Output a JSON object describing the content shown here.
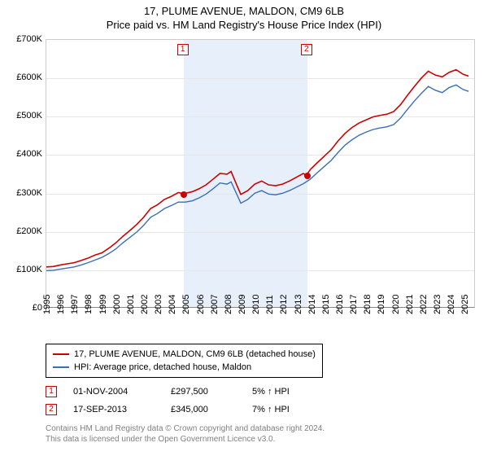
{
  "title": {
    "line1": "17, PLUME AVENUE, MALDON, CM9 6LB",
    "line2": "Price paid vs. HM Land Registry's House Price Index (HPI)"
  },
  "chart": {
    "type": "line",
    "background_color": "#ffffff",
    "grid_color": "#e6e6e6",
    "axis_color": "#888888",
    "shade_color": "#e7effa",
    "x": {
      "min": 1995,
      "max": 2025.8,
      "ticks": [
        1995,
        1996,
        1997,
        1998,
        1999,
        2000,
        2001,
        2002,
        2003,
        2004,
        2005,
        2006,
        2007,
        2008,
        2009,
        2010,
        2011,
        2012,
        2013,
        2014,
        2015,
        2016,
        2017,
        2018,
        2019,
        2020,
        2021,
        2022,
        2023,
        2024,
        2025
      ]
    },
    "y": {
      "min": 0,
      "max": 700000,
      "ticks": [
        0,
        100000,
        200000,
        300000,
        400000,
        500000,
        600000,
        700000
      ],
      "labels": [
        "£0",
        "£100K",
        "£200K",
        "£300K",
        "£400K",
        "£500K",
        "£600K",
        "£700K"
      ]
    },
    "shaded": {
      "from": 2004.84,
      "to": 2013.71
    },
    "series_property": {
      "label": "17, PLUME AVENUE, MALDON, CM9 6LB (detached house)",
      "color": "#cc0000",
      "width": 1.6,
      "points": [
        [
          1995.0,
          105000
        ],
        [
          1995.5,
          106000
        ],
        [
          1996.0,
          110000
        ],
        [
          1996.5,
          113000
        ],
        [
          1997.0,
          116000
        ],
        [
          1997.5,
          122000
        ],
        [
          1998.0,
          128000
        ],
        [
          1998.5,
          136000
        ],
        [
          1999.0,
          142000
        ],
        [
          1999.5,
          154000
        ],
        [
          2000.0,
          168000
        ],
        [
          2000.5,
          185000
        ],
        [
          2001.0,
          200000
        ],
        [
          2001.5,
          216000
        ],
        [
          2002.0,
          235000
        ],
        [
          2002.5,
          258000
        ],
        [
          2003.0,
          268000
        ],
        [
          2003.5,
          282000
        ],
        [
          2004.0,
          290000
        ],
        [
          2004.5,
          300000
        ],
        [
          2004.84,
          297500
        ],
        [
          2005.0,
          298000
        ],
        [
          2005.5,
          302000
        ],
        [
          2006.0,
          310000
        ],
        [
          2006.5,
          320000
        ],
        [
          2007.0,
          335000
        ],
        [
          2007.5,
          350000
        ],
        [
          2008.0,
          348000
        ],
        [
          2008.3,
          355000
        ],
        [
          2008.7,
          320000
        ],
        [
          2009.0,
          295000
        ],
        [
          2009.5,
          305000
        ],
        [
          2010.0,
          322000
        ],
        [
          2010.5,
          330000
        ],
        [
          2011.0,
          320000
        ],
        [
          2011.5,
          318000
        ],
        [
          2012.0,
          322000
        ],
        [
          2012.5,
          330000
        ],
        [
          2013.0,
          340000
        ],
        [
          2013.5,
          350000
        ],
        [
          2013.71,
          345000
        ],
        [
          2014.0,
          360000
        ],
        [
          2014.5,
          378000
        ],
        [
          2015.0,
          395000
        ],
        [
          2015.5,
          412000
        ],
        [
          2016.0,
          435000
        ],
        [
          2016.5,
          455000
        ],
        [
          2017.0,
          470000
        ],
        [
          2017.5,
          482000
        ],
        [
          2018.0,
          490000
        ],
        [
          2018.5,
          498000
        ],
        [
          2019.0,
          502000
        ],
        [
          2019.5,
          505000
        ],
        [
          2020.0,
          512000
        ],
        [
          2020.5,
          530000
        ],
        [
          2021.0,
          555000
        ],
        [
          2021.5,
          578000
        ],
        [
          2022.0,
          600000
        ],
        [
          2022.5,
          618000
        ],
        [
          2023.0,
          608000
        ],
        [
          2023.5,
          603000
        ],
        [
          2024.0,
          615000
        ],
        [
          2024.5,
          622000
        ],
        [
          2025.0,
          610000
        ],
        [
          2025.4,
          605000
        ]
      ]
    },
    "series_hpi": {
      "label": "HPI: Average price, detached house, Maldon",
      "color": "#3a6fb7",
      "width": 1.4,
      "points": [
        [
          1995.0,
          95000
        ],
        [
          1995.5,
          96000
        ],
        [
          1996.0,
          99000
        ],
        [
          1996.5,
          102000
        ],
        [
          1997.0,
          105000
        ],
        [
          1997.5,
          110000
        ],
        [
          1998.0,
          116000
        ],
        [
          1998.5,
          123000
        ],
        [
          1999.0,
          130000
        ],
        [
          1999.5,
          140000
        ],
        [
          2000.0,
          152000
        ],
        [
          2000.5,
          168000
        ],
        [
          2001.0,
          182000
        ],
        [
          2001.5,
          196000
        ],
        [
          2002.0,
          214000
        ],
        [
          2002.5,
          235000
        ],
        [
          2003.0,
          245000
        ],
        [
          2003.5,
          258000
        ],
        [
          2004.0,
          266000
        ],
        [
          2004.5,
          275000
        ],
        [
          2005.0,
          275000
        ],
        [
          2005.5,
          278000
        ],
        [
          2006.0,
          286000
        ],
        [
          2006.5,
          296000
        ],
        [
          2007.0,
          310000
        ],
        [
          2007.5,
          325000
        ],
        [
          2008.0,
          322000
        ],
        [
          2008.3,
          328000
        ],
        [
          2008.7,
          296000
        ],
        [
          2009.0,
          272000
        ],
        [
          2009.5,
          282000
        ],
        [
          2010.0,
          298000
        ],
        [
          2010.5,
          305000
        ],
        [
          2011.0,
          296000
        ],
        [
          2011.5,
          294000
        ],
        [
          2012.0,
          298000
        ],
        [
          2012.5,
          305000
        ],
        [
          2013.0,
          314000
        ],
        [
          2013.5,
          323000
        ],
        [
          2014.0,
          335000
        ],
        [
          2014.5,
          352000
        ],
        [
          2015.0,
          368000
        ],
        [
          2015.5,
          384000
        ],
        [
          2016.0,
          405000
        ],
        [
          2016.5,
          424000
        ],
        [
          2017.0,
          438000
        ],
        [
          2017.5,
          450000
        ],
        [
          2018.0,
          458000
        ],
        [
          2018.5,
          465000
        ],
        [
          2019.0,
          469000
        ],
        [
          2019.5,
          472000
        ],
        [
          2020.0,
          478000
        ],
        [
          2020.5,
          495000
        ],
        [
          2021.0,
          518000
        ],
        [
          2021.5,
          540000
        ],
        [
          2022.0,
          560000
        ],
        [
          2022.5,
          578000
        ],
        [
          2023.0,
          568000
        ],
        [
          2023.5,
          562000
        ],
        [
          2024.0,
          575000
        ],
        [
          2024.5,
          582000
        ],
        [
          2025.0,
          570000
        ],
        [
          2025.4,
          565000
        ]
      ]
    },
    "sale_markers": [
      {
        "n": "1",
        "year": 2004.84,
        "price": 297500
      },
      {
        "n": "2",
        "year": 2013.71,
        "price": 345000
      }
    ]
  },
  "legend": {
    "rows": [
      {
        "color": "#cc0000",
        "label": "17, PLUME AVENUE, MALDON, CM9 6LB (detached house)"
      },
      {
        "color": "#3a6fb7",
        "label": "HPI: Average price, detached house, Maldon"
      }
    ]
  },
  "sales": [
    {
      "n": "1",
      "date": "01-NOV-2004",
      "price": "£297,500",
      "note": "5% ↑ HPI"
    },
    {
      "n": "2",
      "date": "17-SEP-2013",
      "price": "£345,000",
      "note": "7% ↑ HPI"
    }
  ],
  "footer": {
    "line1": "Contains HM Land Registry data © Crown copyright and database right 2024.",
    "line2": "This data is licensed under the Open Government Licence v3.0."
  }
}
